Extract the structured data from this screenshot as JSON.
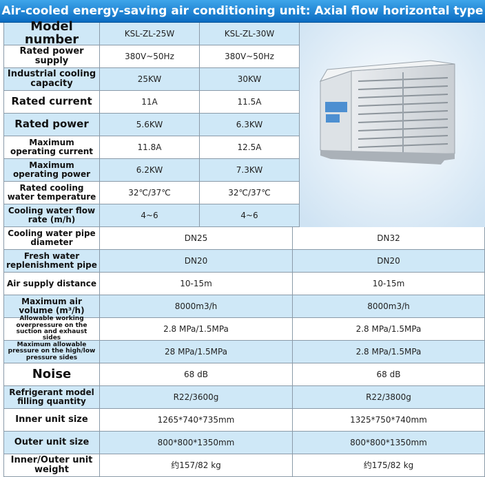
{
  "title": "Air-cooled energy-saving air conditioning unit: Axial flow horizontal type",
  "table": {
    "rows": [
      [
        "Model number",
        "KSL-ZL-25W",
        "KSL-ZL-30W"
      ],
      [
        "Rated power supply",
        "380V~50Hz",
        "380V~50Hz"
      ],
      [
        "Industrial cooling capacity",
        "25KW",
        "30KW"
      ],
      [
        "Rated current",
        "11A",
        "11.5A"
      ],
      [
        "Rated power",
        "5.6KW",
        "6.3KW"
      ],
      [
        "Maximum operating current",
        "11.8A",
        "12.5A"
      ],
      [
        "Maximum operating power",
        "6.2KW",
        "7.3KW"
      ],
      [
        "Rated cooling water temperature",
        "32℃/37℃",
        "32℃/37℃"
      ],
      [
        "Cooling water flow rate (m/h)",
        "4~6",
        "4~6"
      ],
      [
        "Cooling water pipe diameter",
        "DN25",
        "DN32"
      ],
      [
        "Fresh water replenishment pipe",
        "DN20",
        "DN20"
      ],
      [
        "Air supply distance",
        "10-15m",
        "10-15m"
      ],
      [
        "Maximum air volume (m³/h)",
        "8000m3/h",
        "8000m3/h"
      ],
      [
        "Allowable working overpressure on the suction and exhaust sides",
        "2.8 MPa/1.5MPa",
        "2.8 MPa/1.5MPa"
      ],
      [
        "Maximum allowable pressure on the high/low pressure sides",
        "28 MPa/1.5MPa",
        "2.8 MPa/1.5MPa"
      ],
      [
        "Noise",
        "68 dB",
        "68 dB"
      ],
      [
        "Refrigerant model filling quantity",
        "R22/3600g",
        "R22/3800g"
      ],
      [
        "Inner unit size",
        "1265*740*735mm",
        "1325*750*740mm"
      ],
      [
        "Outer unit size",
        "800*800*1350mm",
        "800*800*1350mm"
      ],
      [
        "Inner/Outer unit weight",
        "约157/82 kg",
        "约175/82 kg"
      ]
    ]
  }
}
